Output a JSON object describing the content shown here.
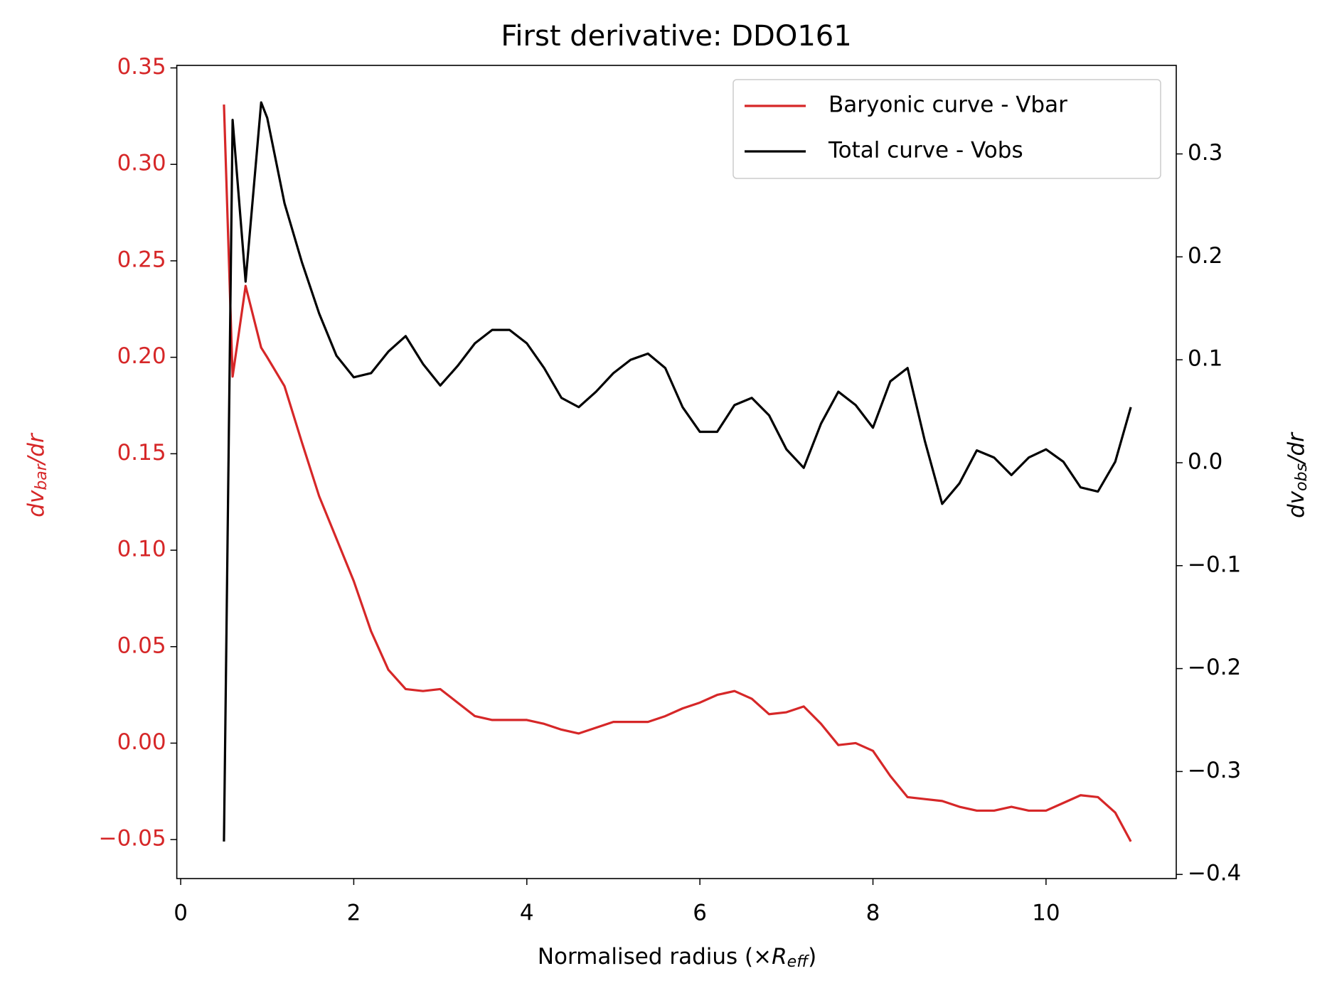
{
  "chart_data": {
    "type": "line",
    "title": "First derivative: DDO161",
    "xlabel": [
      "Normalised radius (×",
      "R",
      "eff",
      ")"
    ],
    "ylabel": [
      "dv",
      "bar",
      "/dr"
    ],
    "y2label": [
      "dv",
      "obs",
      "/dr"
    ],
    "x": [
      0.5,
      0.6,
      0.75,
      0.93,
      1.0,
      1.2,
      1.4,
      1.6,
      1.8,
      2.0,
      2.2,
      2.4,
      2.6,
      2.8,
      3.0,
      3.2,
      3.4,
      3.6,
      3.8,
      4.0,
      4.2,
      4.4,
      4.6,
      4.8,
      5.0,
      5.2,
      5.4,
      5.6,
      5.8,
      6.0,
      6.2,
      6.4,
      6.6,
      6.8,
      7.0,
      7.2,
      7.4,
      7.6,
      7.8,
      8.0,
      8.2,
      8.4,
      8.6,
      8.8,
      9.0,
      9.2,
      9.4,
      9.6,
      9.8,
      10.0,
      10.2,
      10.4,
      10.6,
      10.8,
      10.98
    ],
    "series": [
      {
        "name": "Baryonic curve - Vbar",
        "color": "#d62728",
        "axis": "y",
        "values": [
          0.331,
          0.19,
          0.237,
          0.205,
          0.2,
          0.185,
          0.156,
          0.128,
          0.106,
          0.084,
          0.058,
          0.038,
          0.028,
          0.027,
          0.028,
          0.021,
          0.014,
          0.012,
          0.012,
          0.012,
          0.01,
          0.007,
          0.005,
          0.008,
          0.011,
          0.011,
          0.011,
          0.014,
          0.018,
          0.021,
          0.025,
          0.027,
          0.023,
          0.015,
          0.016,
          0.019,
          0.01,
          -0.001,
          0.0,
          -0.004,
          -0.017,
          -0.028,
          -0.029,
          -0.03,
          -0.033,
          -0.035,
          -0.035,
          -0.033,
          -0.035,
          -0.035,
          -0.031,
          -0.027,
          -0.028,
          -0.036,
          -0.051
        ]
      },
      {
        "name": "Total curve - Vobs",
        "color": "#000000",
        "axis": "y2",
        "values": [
          -0.368,
          0.333,
          0.176,
          0.35,
          0.335,
          0.252,
          0.195,
          0.145,
          0.104,
          0.083,
          0.087,
          0.108,
          0.123,
          0.096,
          0.075,
          0.094,
          0.116,
          0.129,
          0.129,
          0.116,
          0.092,
          0.063,
          0.054,
          0.069,
          0.087,
          0.1,
          0.106,
          0.092,
          0.054,
          0.03,
          0.03,
          0.056,
          0.063,
          0.046,
          0.013,
          -0.005,
          0.038,
          0.069,
          0.056,
          0.034,
          0.079,
          0.092,
          0.021,
          -0.04,
          -0.02,
          0.012,
          0.005,
          -0.012,
          0.005,
          0.013,
          0.001,
          -0.024,
          -0.028,
          0.001,
          0.054
        ]
      }
    ],
    "xlim": [
      -0.045,
      11.505
    ],
    "xticks": [
      0,
      2,
      4,
      6,
      8,
      10
    ],
    "ylim": [
      -0.0702,
      0.3513
    ],
    "yticks": [
      {
        "value": -0.05,
        "label": "−0.05"
      },
      {
        "value": 0,
        "label": "0.00"
      },
      0.05,
      {
        "value": 0.1,
        "label": "0.10"
      },
      0.15,
      {
        "value": 0.2,
        "label": "0.20"
      },
      0.25,
      {
        "value": 0.3,
        "label": "0.30"
      },
      0.35
    ],
    "y2lim": [
      -0.404,
      0.386
    ],
    "y2ticks": [
      {
        "value": -0.4,
        "label": "−0.4"
      },
      {
        "value": -0.3,
        "label": "−0.3"
      },
      {
        "value": -0.2,
        "label": "−0.2"
      },
      {
        "value": -0.1,
        "label": "−0.1"
      },
      {
        "value": 0,
        "label": "0.0"
      },
      0.1,
      0.2,
      0.3
    ],
    "ycolor": "#d62728",
    "legend": "upper right"
  }
}
